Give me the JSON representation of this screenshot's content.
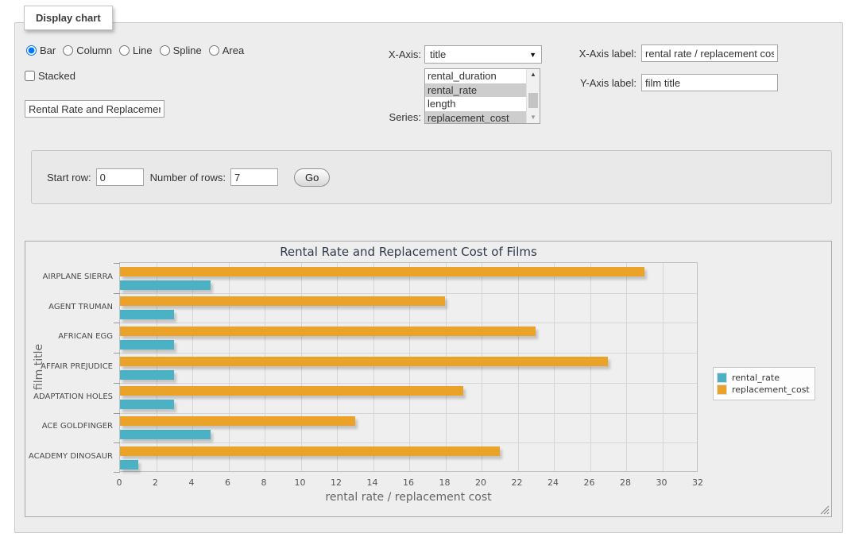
{
  "panel": {
    "title": "Display chart"
  },
  "chart_type": {
    "options": [
      "Bar",
      "Column",
      "Line",
      "Spline",
      "Area"
    ],
    "selected": "Bar"
  },
  "stacked": {
    "label": "Stacked",
    "checked": false
  },
  "title_input": {
    "value": "Rental Rate and Replacement Cost of Films"
  },
  "x_axis": {
    "label": "X-Axis:",
    "selected": "title"
  },
  "series_list": {
    "label": "Series:",
    "options": [
      {
        "label": "rental_duration",
        "selected": false
      },
      {
        "label": "rental_rate",
        "selected": true
      },
      {
        "label": "length",
        "selected": false
      },
      {
        "label": "replacement_cost",
        "selected": true
      }
    ]
  },
  "x_axis_label": {
    "label": "X-Axis label:",
    "value": "rental rate / replacement cost"
  },
  "y_axis_label": {
    "label": "Y-Axis label:",
    "value": "film title"
  },
  "row_controls": {
    "start_row_label": "Start row:",
    "start_row_value": "0",
    "num_rows_label": "Number of rows:",
    "num_rows_value": "7",
    "go_label": "Go"
  },
  "chart_data": {
    "type": "bar",
    "orientation": "horizontal",
    "title": "Rental Rate and Replacement Cost of Films",
    "categories": [
      "AIRPLANE SIERRA",
      "AGENT TRUMAN",
      "AFRICAN EGG",
      "AFFAIR PREJUDICE",
      "ADAPTATION HOLES",
      "ACE GOLDFINGER",
      "ACADEMY DINOSAUR"
    ],
    "series": [
      {
        "name": "rental_rate",
        "color": "#4bb2c5",
        "values": [
          4.99,
          2.99,
          2.99,
          2.99,
          2.99,
          4.99,
          0.99
        ]
      },
      {
        "name": "replacement_cost",
        "color": "#EAA228",
        "values": [
          28.99,
          17.99,
          22.99,
          26.99,
          18.99,
          12.99,
          20.99
        ]
      }
    ],
    "xlabel": "rental rate / replacement cost",
    "ylabel": "film title",
    "xlim": [
      0,
      32
    ],
    "xticks": [
      0,
      2,
      4,
      6,
      8,
      10,
      12,
      14,
      16,
      18,
      20,
      22,
      24,
      26,
      28,
      30,
      32
    ],
    "grid": true,
    "legend_position": "right"
  }
}
